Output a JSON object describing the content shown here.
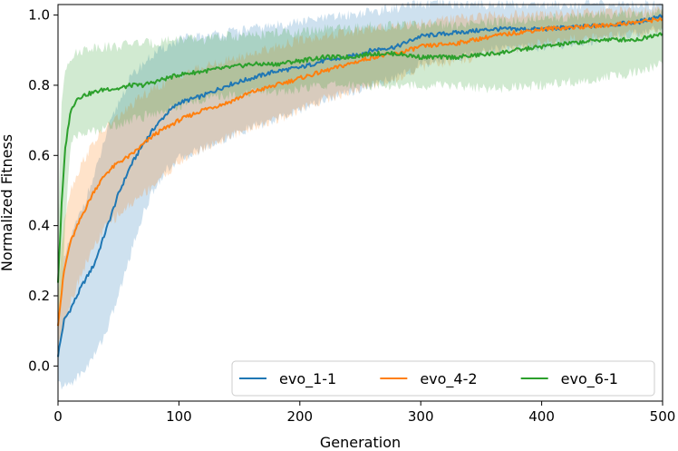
{
  "chart_data": {
    "type": "line",
    "title": "",
    "xlabel": "Generation",
    "ylabel": "Normalized Fitness",
    "xlim": [
      0,
      500
    ],
    "ylim": [
      -0.1,
      1.03
    ],
    "xticks": [
      0,
      100,
      200,
      300,
      400,
      500
    ],
    "yticks": [
      0.0,
      0.2,
      0.4,
      0.6,
      0.8,
      1.0
    ],
    "xtick_labels": [
      "0",
      "100",
      "200",
      "300",
      "400",
      "500"
    ],
    "ytick_labels": [
      "0.0",
      "0.2",
      "0.4",
      "0.6",
      "0.8",
      "1.0"
    ],
    "grid": false,
    "legend_position": "lower-right",
    "series": [
      {
        "name": "evo_1-1",
        "color": "#1f77b4",
        "x": [
          0,
          5,
          10,
          20,
          30,
          40,
          50,
          60,
          70,
          80,
          90,
          100,
          120,
          140,
          160,
          180,
          200,
          220,
          240,
          260,
          280,
          300,
          330,
          360,
          400,
          450,
          480,
          500
        ],
        "mean": [
          0.03,
          0.13,
          0.16,
          0.23,
          0.29,
          0.39,
          0.49,
          0.57,
          0.63,
          0.68,
          0.72,
          0.75,
          0.77,
          0.8,
          0.82,
          0.84,
          0.85,
          0.87,
          0.88,
          0.9,
          0.91,
          0.94,
          0.95,
          0.96,
          0.96,
          0.97,
          0.98,
          1.0
        ],
        "lower": [
          -0.05,
          -0.06,
          -0.05,
          -0.02,
          0.03,
          0.1,
          0.2,
          0.32,
          0.43,
          0.51,
          0.56,
          0.59,
          0.62,
          0.65,
          0.68,
          0.7,
          0.73,
          0.76,
          0.78,
          0.8,
          0.82,
          0.86,
          0.88,
          0.9,
          0.91,
          0.93,
          0.95,
          0.96
        ],
        "upper": [
          0.12,
          0.3,
          0.36,
          0.45,
          0.54,
          0.66,
          0.75,
          0.82,
          0.86,
          0.89,
          0.91,
          0.93,
          0.94,
          0.95,
          0.96,
          0.97,
          0.98,
          0.99,
          1.0,
          1.01,
          1.02,
          1.03,
          1.03,
          1.03,
          1.03,
          1.03,
          1.03,
          1.03
        ]
      },
      {
        "name": "evo_4-2",
        "color": "#ff7f0e",
        "x": [
          0,
          5,
          10,
          20,
          30,
          40,
          50,
          60,
          70,
          80,
          90,
          100,
          120,
          140,
          160,
          180,
          200,
          220,
          240,
          260,
          280,
          300,
          330,
          360,
          400,
          450,
          480,
          500
        ],
        "mean": [
          0.12,
          0.27,
          0.35,
          0.43,
          0.5,
          0.55,
          0.58,
          0.6,
          0.63,
          0.66,
          0.68,
          0.7,
          0.73,
          0.75,
          0.78,
          0.8,
          0.82,
          0.84,
          0.86,
          0.88,
          0.89,
          0.91,
          0.92,
          0.94,
          0.96,
          0.97,
          0.98,
          0.99
        ],
        "lower": [
          0.05,
          0.12,
          0.18,
          0.27,
          0.34,
          0.4,
          0.43,
          0.46,
          0.49,
          0.52,
          0.55,
          0.58,
          0.62,
          0.65,
          0.68,
          0.7,
          0.73,
          0.76,
          0.78,
          0.8,
          0.82,
          0.85,
          0.87,
          0.89,
          0.92,
          0.94,
          0.95,
          0.96
        ],
        "upper": [
          0.2,
          0.42,
          0.5,
          0.58,
          0.64,
          0.68,
          0.71,
          0.74,
          0.77,
          0.79,
          0.81,
          0.83,
          0.85,
          0.87,
          0.89,
          0.91,
          0.93,
          0.94,
          0.95,
          0.96,
          0.97,
          0.98,
          0.99,
          1.0,
          1.0,
          1.01,
          1.01,
          1.02
        ]
      },
      {
        "name": "evo_6-1",
        "color": "#2ca02c",
        "x": [
          0,
          3,
          6,
          10,
          15,
          20,
          30,
          40,
          50,
          60,
          70,
          80,
          90,
          100,
          120,
          140,
          160,
          180,
          200,
          220,
          240,
          260,
          280,
          300,
          330,
          360,
          400,
          450,
          480,
          500
        ],
        "mean": [
          0.24,
          0.46,
          0.62,
          0.72,
          0.76,
          0.77,
          0.78,
          0.79,
          0.79,
          0.8,
          0.8,
          0.81,
          0.82,
          0.83,
          0.84,
          0.85,
          0.86,
          0.86,
          0.87,
          0.88,
          0.88,
          0.89,
          0.89,
          0.88,
          0.88,
          0.89,
          0.91,
          0.93,
          0.93,
          0.95
        ],
        "lower": [
          0.1,
          0.2,
          0.4,
          0.62,
          0.66,
          0.66,
          0.67,
          0.68,
          0.69,
          0.7,
          0.71,
          0.72,
          0.73,
          0.74,
          0.76,
          0.77,
          0.78,
          0.78,
          0.79,
          0.8,
          0.8,
          0.8,
          0.8,
          0.8,
          0.8,
          0.79,
          0.8,
          0.82,
          0.84,
          0.86
        ],
        "upper": [
          0.4,
          0.75,
          0.85,
          0.88,
          0.89,
          0.9,
          0.91,
          0.91,
          0.91,
          0.92,
          0.92,
          0.92,
          0.93,
          0.93,
          0.93,
          0.94,
          0.94,
          0.95,
          0.95,
          0.96,
          0.96,
          0.97,
          0.97,
          0.97,
          0.97,
          0.98,
          0.99,
          1.0,
          1.0,
          1.01
        ]
      }
    ]
  }
}
